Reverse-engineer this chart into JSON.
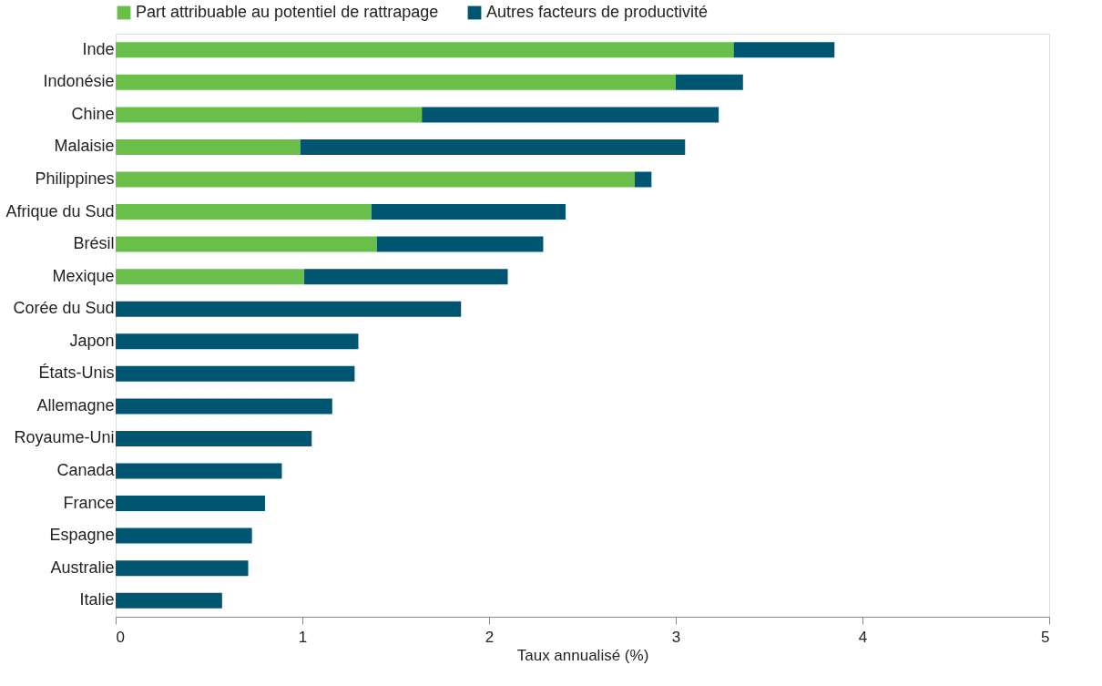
{
  "chart_data": {
    "type": "bar",
    "orientation": "horizontal",
    "stacked": true,
    "xlabel": "Taux annualisé (%)",
    "categories": [
      "Inde",
      "Indonésie",
      "Chine",
      "Malaisie",
      "Philippines",
      "Afrique du Sud",
      "Brésil",
      "Mexique",
      "Corée du Sud",
      "Japon",
      "États-Unis",
      "Allemagne",
      "Royaume-Uni",
      "Canada",
      "France",
      "Espagne",
      "Australie",
      "Italie"
    ],
    "series": [
      {
        "name": "Part attribuable au potentiel de rattrapage",
        "color": "#6abf4b",
        "values": [
          3.31,
          3.0,
          1.64,
          0.99,
          2.78,
          1.37,
          1.4,
          1.01,
          null,
          null,
          null,
          null,
          null,
          null,
          null,
          null,
          null,
          null
        ]
      },
      {
        "name": "Autres facteurs de productivité",
        "color": "#005670",
        "values": [
          0.54,
          0.36,
          1.59,
          2.06,
          0.09,
          1.04,
          0.89,
          1.09,
          1.85,
          1.3,
          1.28,
          1.16,
          1.05,
          0.89,
          0.8,
          0.73,
          0.71,
          0.57
        ]
      }
    ],
    "xlim": [
      0,
      5
    ],
    "xticks": [
      0,
      1,
      2,
      3,
      4,
      5
    ],
    "grid": false,
    "legend": "top left"
  }
}
